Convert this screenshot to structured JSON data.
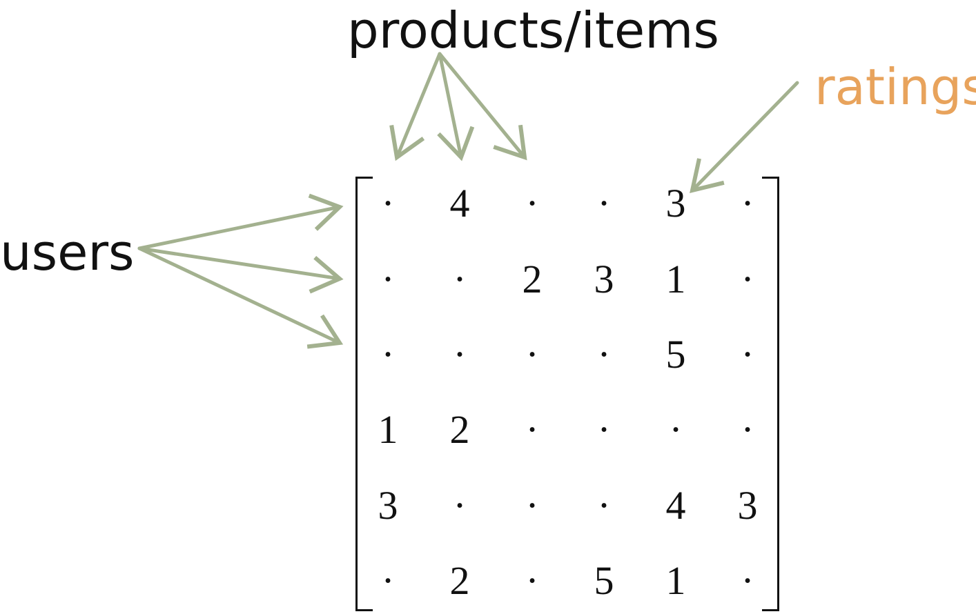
{
  "labels": {
    "products": "products/items",
    "users": "users",
    "ratings": "ratings"
  },
  "colors": {
    "arrow": "#a3b18f",
    "ratings_label": "#e8a35c",
    "text": "#111111"
  },
  "matrix": {
    "rows": [
      [
        "·",
        "4",
        "·",
        "·",
        "3",
        "·"
      ],
      [
        "·",
        "·",
        "2",
        "3",
        "1",
        "·"
      ],
      [
        "·",
        "·",
        "·",
        "·",
        "5",
        "·"
      ],
      [
        "1",
        "2",
        "·",
        "·",
        "·",
        "·"
      ],
      [
        "3",
        "·",
        "·",
        "·",
        "4",
        "3"
      ],
      [
        "·",
        "2",
        "·",
        "5",
        "1",
        "·"
      ]
    ]
  }
}
